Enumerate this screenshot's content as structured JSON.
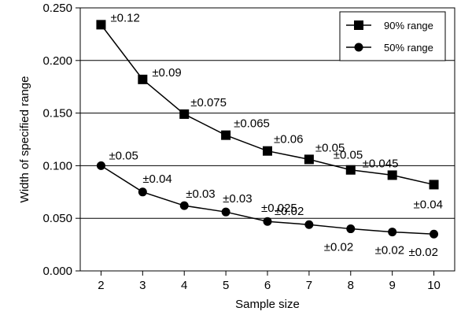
{
  "chart_data": {
    "type": "line",
    "title": "",
    "xlabel": "Sample size",
    "ylabel": "Width of specified range",
    "x": [
      2,
      3,
      4,
      5,
      6,
      7,
      8,
      9,
      10
    ],
    "xlim": [
      1.5,
      10.5
    ],
    "ylim": [
      0,
      0.25
    ],
    "yticks": [
      "0.000",
      "0.050",
      "0.100",
      "0.150",
      "0.200",
      "0.250"
    ],
    "ytick_values": [
      0,
      0.05,
      0.1,
      0.15,
      0.2,
      0.25
    ],
    "grid": "horizontal",
    "legend_position": "top-right",
    "series": [
      {
        "name": "90% range",
        "marker": "square",
        "values": [
          0.234,
          0.182,
          0.149,
          0.129,
          0.114,
          0.106,
          0.096,
          0.091,
          0.082
        ],
        "labels": [
          "±0.12",
          "±0.09",
          "±0.075",
          "±0.065",
          "±0.06",
          "±0.05",
          "±0.05",
          "±0.045",
          "±0.04"
        ]
      },
      {
        "name": "50% range",
        "marker": "circle",
        "values": [
          0.1,
          0.075,
          0.062,
          0.056,
          0.047,
          0.044,
          0.04,
          0.037,
          0.035
        ],
        "labels": [
          "±0.05",
          "±0.04",
          "±0.03",
          "±0.03",
          "±0.025",
          "±0.02",
          "±0.02",
          "±0.02",
          "±0.02"
        ]
      }
    ]
  }
}
